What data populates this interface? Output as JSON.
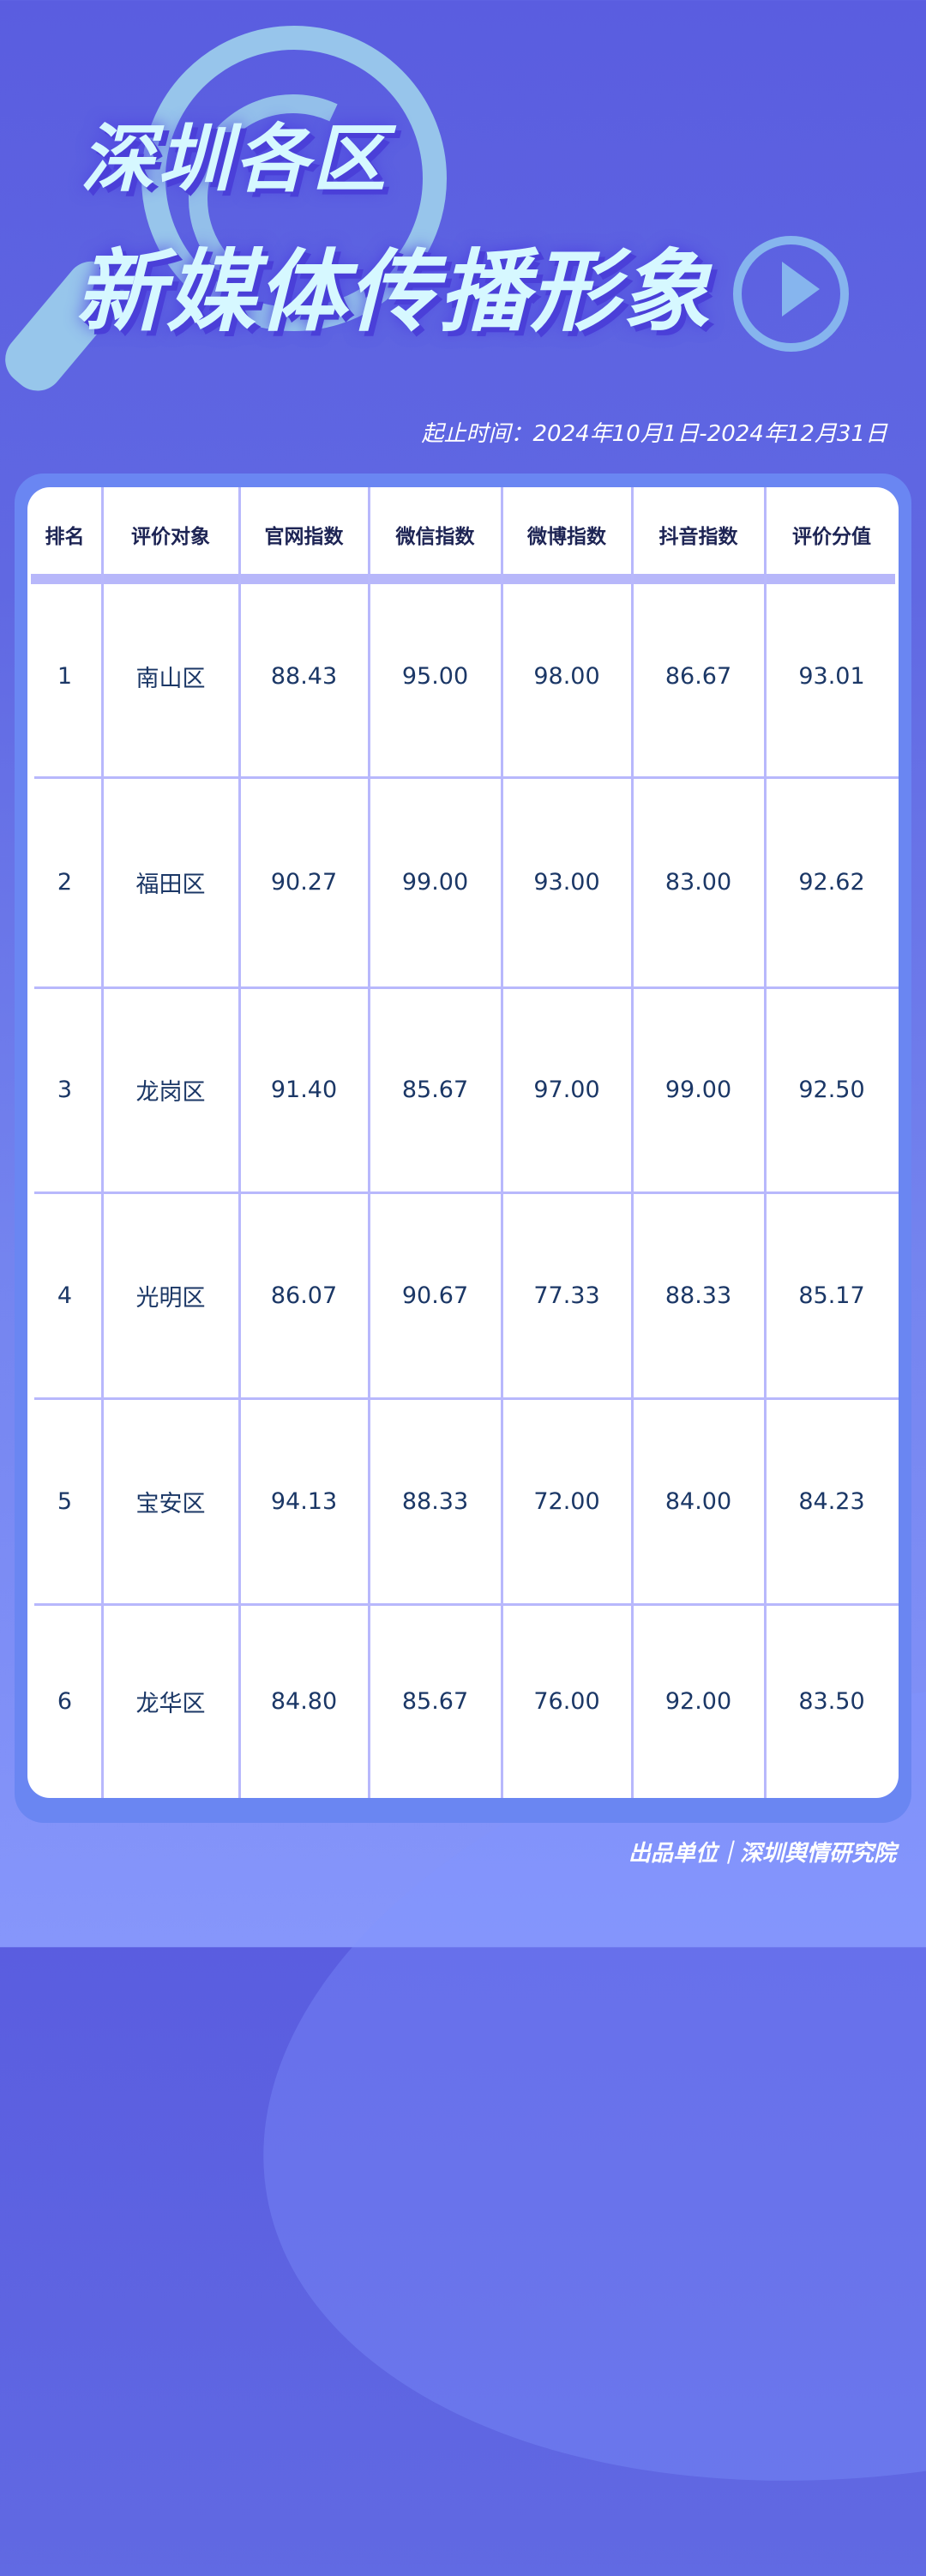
{
  "header": {
    "title_line1": "深圳各区",
    "title_line2": "新媒体传播形象",
    "date_range": "起止时间：2024年10月1日-2024年12月31日"
  },
  "table": {
    "columns": [
      "排名",
      "评价对象",
      "官网指数",
      "微信指数",
      "微博指数",
      "抖音指数",
      "评价分值"
    ],
    "rows": [
      [
        "1",
        "南山区",
        "88.43",
        "95.00",
        "98.00",
        "86.67",
        "93.01"
      ],
      [
        "2",
        "福田区",
        "90.27",
        "99.00",
        "93.00",
        "83.00",
        "92.62"
      ],
      [
        "3",
        "龙岗区",
        "91.40",
        "85.67",
        "97.00",
        "99.00",
        "92.50"
      ],
      [
        "4",
        "光明区",
        "86.07",
        "90.67",
        "77.33",
        "88.33",
        "85.17"
      ],
      [
        "5",
        "宝安区",
        "94.13",
        "88.33",
        "72.00",
        "84.00",
        "84.23"
      ],
      [
        "6",
        "龙华区",
        "84.80",
        "85.67",
        "76.00",
        "92.00",
        "83.50"
      ]
    ]
  },
  "footer": {
    "credit": "出品单位｜深圳舆情研究院"
  },
  "colors": {
    "background_top": "#5a5de0",
    "background_bottom": "#8696fb",
    "frame": "#6a86f2",
    "grid": "#b8b8fc",
    "title": "#d6f8ff",
    "text": "#1b3766"
  },
  "icons": [
    "magnifier-icon",
    "play-icon"
  ]
}
